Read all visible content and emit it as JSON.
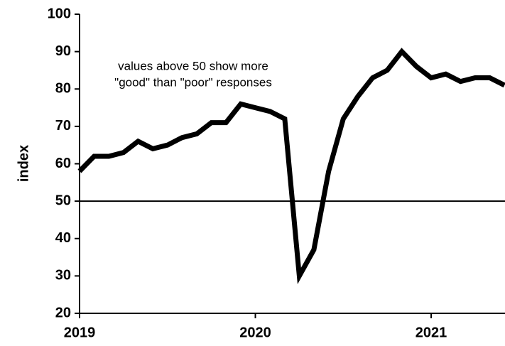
{
  "chart_data": {
    "type": "line",
    "y_label": "index",
    "annotation": [
      "values above 50 show more",
      "\"good\" than \"poor\" responses"
    ],
    "x": [
      2019,
      2019.083,
      2019.167,
      2019.25,
      2019.333,
      2019.417,
      2019.5,
      2019.583,
      2019.667,
      2019.75,
      2019.833,
      2019.917,
      2020,
      2020.083,
      2020.167,
      2020.25,
      2020.333,
      2020.417,
      2020.5,
      2020.583,
      2020.667,
      2020.75,
      2020.833,
      2020.917,
      2021,
      2021.083,
      2021.167,
      2021.25,
      2021.333,
      2021.417
    ],
    "values": [
      58,
      62,
      62,
      63,
      66,
      64,
      65,
      67,
      68,
      71,
      71,
      76,
      75,
      74,
      72,
      30,
      37,
      58,
      72,
      78,
      83,
      85,
      90,
      86,
      83,
      84,
      82,
      83,
      83,
      81
    ],
    "color": "#000000",
    "reference_line": 50,
    "xlim": [
      2019,
      2021.42
    ],
    "xticks": [
      2019,
      2020,
      2021
    ],
    "ylim": [
      20,
      100
    ],
    "yticks": [
      20,
      30,
      40,
      50,
      60,
      70,
      80,
      90,
      100
    ]
  }
}
